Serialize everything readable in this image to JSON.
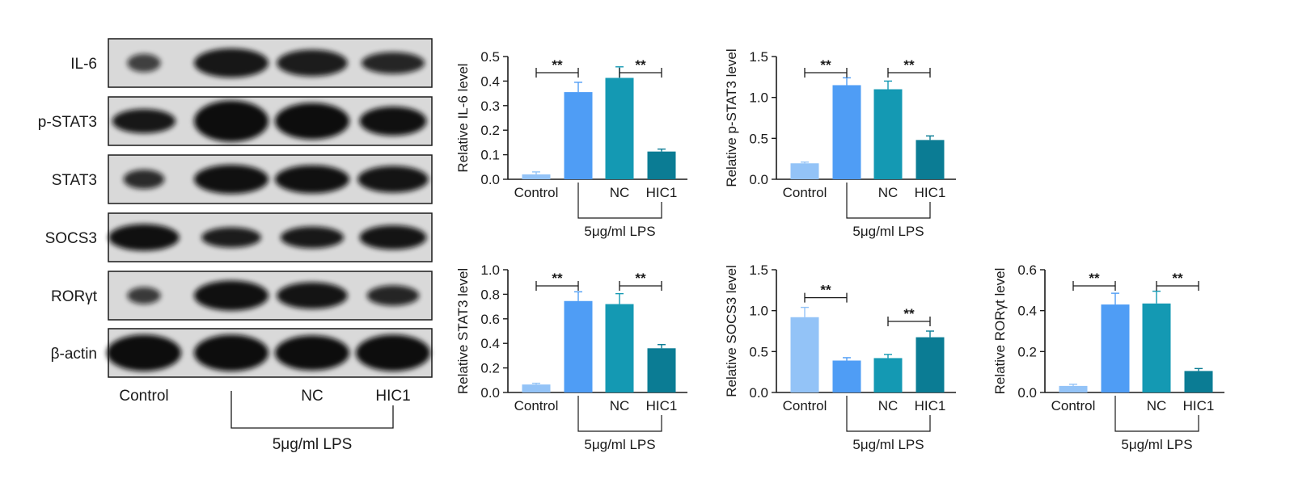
{
  "blot": {
    "rows": [
      "IL-6",
      "p-STAT3",
      "STAT3",
      "SOCS3",
      "RORγt",
      "β-actin"
    ],
    "lanes": [
      "Control",
      "",
      "NC",
      "HIC1"
    ],
    "group_label": "5μg/ml LPS"
  },
  "colors": {
    "Control": "#93c3f7",
    "LPS": "#4f9df5",
    "NC": "#1499b3",
    "HIC1": "#0b7c94"
  },
  "chart_data": [
    {
      "type": "bar",
      "ylabel": "Relative IL-6 level",
      "categories": [
        "Control",
        "",
        "NC",
        "HIC1"
      ],
      "values": [
        0.02,
        0.355,
        0.413,
        0.113
      ],
      "errors": [
        0.01,
        0.04,
        0.045,
        0.01
      ],
      "ylim": [
        0,
        0.5
      ],
      "yticks": [
        0.0,
        0.1,
        0.2,
        0.3,
        0.4,
        0.5
      ],
      "ytick_labels": [
        "0.0",
        "0.1",
        "0.2",
        "0.3",
        "0.4",
        "0.5"
      ],
      "group_label": "5μg/ml LPS",
      "significance": [
        {
          "from": 0,
          "to": 1,
          "label": "**"
        },
        {
          "from": 2,
          "to": 3,
          "label": "**"
        }
      ]
    },
    {
      "type": "bar",
      "ylabel": "Relative p-STAT3 level",
      "categories": [
        "Control",
        "",
        "NC",
        "HIC1"
      ],
      "values": [
        0.195,
        1.15,
        1.1,
        0.48
      ],
      "errors": [
        0.015,
        0.09,
        0.1,
        0.05
      ],
      "ylim": [
        0,
        1.5
      ],
      "yticks": [
        0.0,
        0.5,
        1.0,
        1.5
      ],
      "ytick_labels": [
        "0.0",
        "0.5",
        "1.0",
        "1.5"
      ],
      "group_label": "5μg/ml LPS",
      "significance": [
        {
          "from": 0,
          "to": 1,
          "label": "**"
        },
        {
          "from": 2,
          "to": 3,
          "label": "**"
        }
      ]
    },
    {
      "type": "bar",
      "ylabel": "Relative STAT3 level",
      "categories": [
        "Control",
        "",
        "NC",
        "HIC1"
      ],
      "values": [
        0.065,
        0.745,
        0.72,
        0.36
      ],
      "errors": [
        0.01,
        0.075,
        0.085,
        0.03
      ],
      "ylim": [
        0,
        1.0
      ],
      "yticks": [
        0.0,
        0.2,
        0.4,
        0.6,
        0.8,
        1.0
      ],
      "ytick_labels": [
        "0.0",
        "0.2",
        "0.4",
        "0.6",
        "0.8",
        "1.0"
      ],
      "group_label": "5μg/ml LPS",
      "significance": [
        {
          "from": 0,
          "to": 1,
          "label": "**"
        },
        {
          "from": 2,
          "to": 3,
          "label": "**"
        }
      ]
    },
    {
      "type": "bar",
      "ylabel": "Relative SOCS3 level",
      "categories": [
        "Control",
        "",
        "NC",
        "HIC1"
      ],
      "values": [
        0.92,
        0.39,
        0.42,
        0.675
      ],
      "errors": [
        0.12,
        0.035,
        0.045,
        0.075
      ],
      "ylim": [
        0,
        1.5
      ],
      "yticks": [
        0.0,
        0.5,
        1.0,
        1.5
      ],
      "ytick_labels": [
        "0.0",
        "0.5",
        "1.0",
        "1.5"
      ],
      "group_label": "5μg/ml LPS",
      "significance": [
        {
          "from": 0,
          "to": 1,
          "label": "**"
        },
        {
          "from": 2,
          "to": 3,
          "label": "**"
        }
      ]
    },
    {
      "type": "bar",
      "ylabel": "Relative RORγt level",
      "categories": [
        "Control",
        "",
        "NC",
        "HIC1"
      ],
      "values": [
        0.032,
        0.43,
        0.435,
        0.105
      ],
      "errors": [
        0.008,
        0.055,
        0.06,
        0.012
      ],
      "ylim": [
        0,
        0.6
      ],
      "yticks": [
        0.0,
        0.2,
        0.4,
        0.6
      ],
      "ytick_labels": [
        "0.0",
        "0.2",
        "0.4",
        "0.6"
      ],
      "group_label": "5μg/ml LPS",
      "significance": [
        {
          "from": 0,
          "to": 1,
          "label": "**"
        },
        {
          "from": 2,
          "to": 3,
          "label": "**"
        }
      ]
    }
  ]
}
